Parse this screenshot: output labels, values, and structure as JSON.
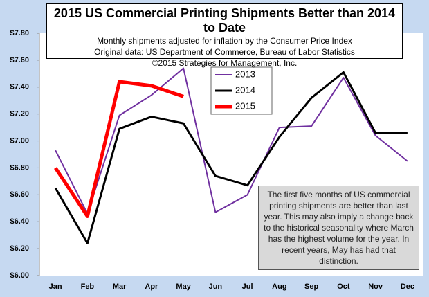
{
  "chart_data": {
    "type": "line",
    "title": "2015 US Commercial Printing Shipments Better than 2014 to Date",
    "subtitle": [
      "Monthly shipments adjusted for inflation by the Consumer Price Index",
      "Original data: US Department of Commerce, Bureau of Labor Statistics",
      "©2015 Strategies for Management, Inc."
    ],
    "annotation": "The first five months of US commercial printing shipments are better than last year. This may also imply a change back to the historical seasonality where March has the highest volume for the year. In recent years, May has had that distinction.",
    "categories": [
      "Jan",
      "Feb",
      "Mar",
      "Apr",
      "May",
      "Jun",
      "Jul",
      "Aug",
      "Sep",
      "Oct",
      "Nov",
      "Dec"
    ],
    "series": [
      {
        "name": "2013",
        "color": "#7030a0",
        "values": [
          6.93,
          6.46,
          7.19,
          7.34,
          7.54,
          6.47,
          6.6,
          7.1,
          7.11,
          7.47,
          7.04,
          6.85
        ]
      },
      {
        "name": "2014",
        "color": "#000000",
        "values": [
          6.65,
          6.24,
          7.09,
          7.18,
          7.13,
          6.74,
          6.67,
          7.03,
          7.32,
          7.51,
          7.06,
          7.06
        ]
      },
      {
        "name": "2015",
        "color": "#ff0000",
        "values": [
          6.8,
          6.44,
          7.44,
          7.41,
          7.33,
          null,
          null,
          null,
          null,
          null,
          null,
          null
        ]
      }
    ],
    "ylim": [
      6.0,
      7.8
    ],
    "yticks": [
      {
        "value": 6.0,
        "label": "$6.00"
      },
      {
        "value": 6.2,
        "label": "$6.20"
      },
      {
        "value": 6.4,
        "label": "$6.40"
      },
      {
        "value": 6.6,
        "label": "$6.60"
      },
      {
        "value": 6.8,
        "label": "$6.80"
      },
      {
        "value": 7.0,
        "label": "$7.00"
      },
      {
        "value": 7.2,
        "label": "$7.20"
      },
      {
        "value": 7.4,
        "label": "$7.40"
      },
      {
        "value": 7.6,
        "label": "$7.60"
      },
      {
        "value": 7.8,
        "label": "$7.80"
      }
    ],
    "grid": false
  }
}
